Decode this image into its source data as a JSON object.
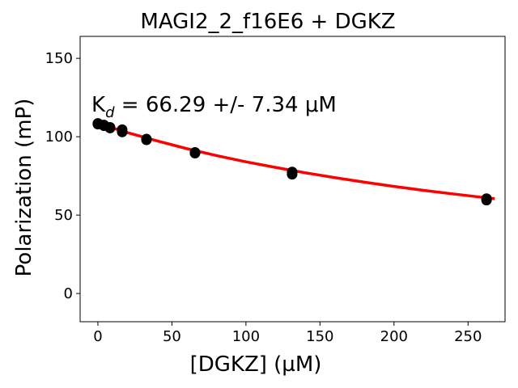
{
  "chart_data": {
    "type": "scatter",
    "title": "MAGI2_2_f16E6 + DGKZ",
    "xlabel": "[DGKZ] (µM)",
    "ylabel": "Polarization (mP)",
    "xlim": [
      -12,
      275
    ],
    "ylim": [
      -18,
      164
    ],
    "xticks": [
      0,
      50,
      100,
      150,
      200,
      250
    ],
    "yticks": [
      0,
      50,
      100,
      150
    ],
    "grid": false,
    "annotation": {
      "prefix": "K",
      "subscript": "d",
      "text": " = 66.29 +/- 7.34 μM"
    },
    "points": {
      "color": "#000000",
      "x": [
        0,
        0,
        4.1,
        4.1,
        8.2,
        8.2,
        16.4,
        16.4,
        32.8,
        32.8,
        65.6,
        65.6,
        131.2,
        131.2,
        262.5,
        262.5
      ],
      "y": [
        108,
        108.5,
        107.5,
        107,
        106,
        105.5,
        104.5,
        103,
        98.5,
        98,
        90,
        89.5,
        77.5,
        76,
        60.5,
        59.5
      ]
    },
    "fit": {
      "color": "#ff0000",
      "x": [
        0,
        20,
        40,
        60,
        80,
        100,
        120,
        140,
        160,
        180,
        200,
        220,
        240,
        260,
        268
      ],
      "y": [
        108.5,
        102.6,
        97.3,
        92.4,
        88.0,
        84.0,
        80.4,
        77.0,
        73.9,
        71.0,
        68.3,
        65.8,
        63.5,
        61.3,
        60.5
      ]
    }
  }
}
